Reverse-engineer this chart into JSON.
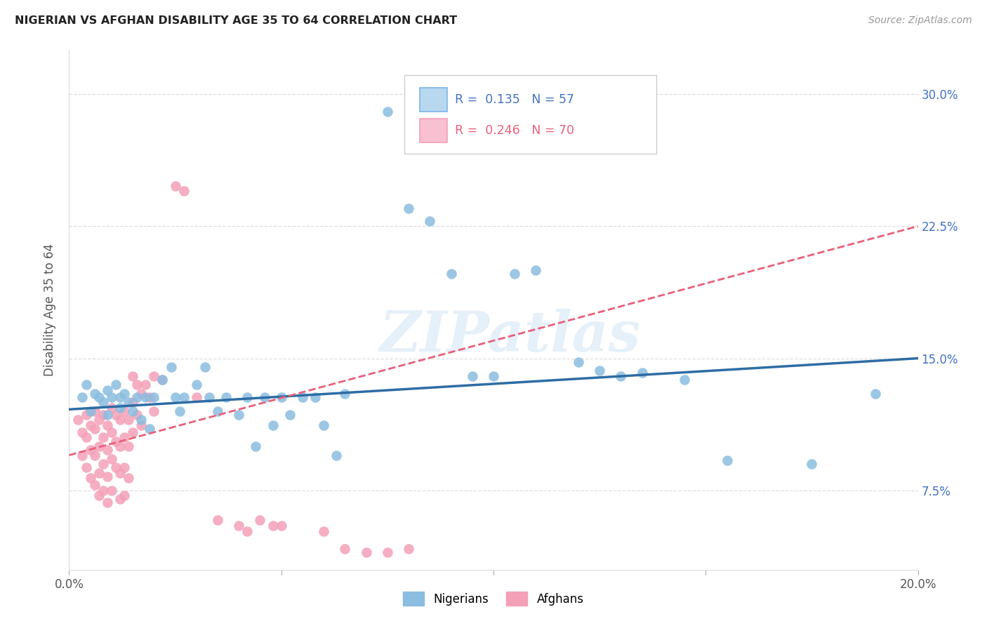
{
  "title": "NIGERIAN VS AFGHAN DISABILITY AGE 35 TO 64 CORRELATION CHART",
  "source": "Source: ZipAtlas.com",
  "ylabel": "Disability Age 35 to 64",
  "xlim": [
    0.0,
    0.2
  ],
  "ylim": [
    0.03,
    0.325
  ],
  "xtick_positions": [
    0.0,
    0.05,
    0.1,
    0.15,
    0.2
  ],
  "xtick_labels": [
    "0.0%",
    "",
    "",
    "",
    "20.0%"
  ],
  "ytick_positions": [
    0.075,
    0.15,
    0.225,
    0.3
  ],
  "ytick_labels": [
    "7.5%",
    "15.0%",
    "22.5%",
    "30.0%"
  ],
  "nigerian_color": "#8BBDE0",
  "afghan_color": "#F4A0B8",
  "nigerian_line_color": "#2E6DA4",
  "afghan_line_color": "#E8607A",
  "watermark": "ZIPatlas",
  "nigerian_points": [
    [
      0.003,
      0.128
    ],
    [
      0.004,
      0.135
    ],
    [
      0.005,
      0.12
    ],
    [
      0.006,
      0.13
    ],
    [
      0.007,
      0.128
    ],
    [
      0.008,
      0.125
    ],
    [
      0.009,
      0.132
    ],
    [
      0.009,
      0.118
    ],
    [
      0.01,
      0.128
    ],
    [
      0.011,
      0.135
    ],
    [
      0.012,
      0.122
    ],
    [
      0.012,
      0.128
    ],
    [
      0.013,
      0.13
    ],
    [
      0.014,
      0.125
    ],
    [
      0.015,
      0.12
    ],
    [
      0.016,
      0.128
    ],
    [
      0.017,
      0.115
    ],
    [
      0.018,
      0.128
    ],
    [
      0.019,
      0.11
    ],
    [
      0.02,
      0.128
    ],
    [
      0.022,
      0.138
    ],
    [
      0.024,
      0.145
    ],
    [
      0.025,
      0.128
    ],
    [
      0.026,
      0.12
    ],
    [
      0.027,
      0.128
    ],
    [
      0.03,
      0.135
    ],
    [
      0.032,
      0.145
    ],
    [
      0.033,
      0.128
    ],
    [
      0.035,
      0.12
    ],
    [
      0.037,
      0.128
    ],
    [
      0.04,
      0.118
    ],
    [
      0.042,
      0.128
    ],
    [
      0.044,
      0.1
    ],
    [
      0.046,
      0.128
    ],
    [
      0.048,
      0.112
    ],
    [
      0.05,
      0.128
    ],
    [
      0.052,
      0.118
    ],
    [
      0.055,
      0.128
    ],
    [
      0.058,
      0.128
    ],
    [
      0.06,
      0.112
    ],
    [
      0.063,
      0.095
    ],
    [
      0.065,
      0.13
    ],
    [
      0.075,
      0.29
    ],
    [
      0.08,
      0.235
    ],
    [
      0.085,
      0.228
    ],
    [
      0.09,
      0.198
    ],
    [
      0.095,
      0.14
    ],
    [
      0.1,
      0.14
    ],
    [
      0.105,
      0.198
    ],
    [
      0.11,
      0.2
    ],
    [
      0.12,
      0.148
    ],
    [
      0.125,
      0.143
    ],
    [
      0.13,
      0.14
    ],
    [
      0.135,
      0.142
    ],
    [
      0.145,
      0.138
    ],
    [
      0.155,
      0.092
    ],
    [
      0.175,
      0.09
    ],
    [
      0.19,
      0.13
    ]
  ],
  "afghan_points": [
    [
      0.002,
      0.115
    ],
    [
      0.003,
      0.108
    ],
    [
      0.003,
      0.095
    ],
    [
      0.004,
      0.118
    ],
    [
      0.004,
      0.105
    ],
    [
      0.004,
      0.088
    ],
    [
      0.005,
      0.112
    ],
    [
      0.005,
      0.098
    ],
    [
      0.005,
      0.082
    ],
    [
      0.006,
      0.12
    ],
    [
      0.006,
      0.11
    ],
    [
      0.006,
      0.095
    ],
    [
      0.006,
      0.078
    ],
    [
      0.007,
      0.115
    ],
    [
      0.007,
      0.1
    ],
    [
      0.007,
      0.085
    ],
    [
      0.007,
      0.072
    ],
    [
      0.008,
      0.118
    ],
    [
      0.008,
      0.105
    ],
    [
      0.008,
      0.09
    ],
    [
      0.008,
      0.075
    ],
    [
      0.009,
      0.112
    ],
    [
      0.009,
      0.098
    ],
    [
      0.009,
      0.083
    ],
    [
      0.009,
      0.068
    ],
    [
      0.01,
      0.122
    ],
    [
      0.01,
      0.108
    ],
    [
      0.01,
      0.093
    ],
    [
      0.01,
      0.075
    ],
    [
      0.011,
      0.118
    ],
    [
      0.011,
      0.103
    ],
    [
      0.011,
      0.088
    ],
    [
      0.012,
      0.115
    ],
    [
      0.012,
      0.1
    ],
    [
      0.012,
      0.085
    ],
    [
      0.012,
      0.07
    ],
    [
      0.013,
      0.12
    ],
    [
      0.013,
      0.105
    ],
    [
      0.013,
      0.088
    ],
    [
      0.013,
      0.072
    ],
    [
      0.014,
      0.115
    ],
    [
      0.014,
      0.1
    ],
    [
      0.014,
      0.082
    ],
    [
      0.015,
      0.14
    ],
    [
      0.015,
      0.125
    ],
    [
      0.015,
      0.108
    ],
    [
      0.016,
      0.135
    ],
    [
      0.016,
      0.118
    ],
    [
      0.017,
      0.13
    ],
    [
      0.017,
      0.112
    ],
    [
      0.018,
      0.135
    ],
    [
      0.019,
      0.128
    ],
    [
      0.02,
      0.14
    ],
    [
      0.02,
      0.12
    ],
    [
      0.022,
      0.138
    ],
    [
      0.025,
      0.248
    ],
    [
      0.027,
      0.245
    ],
    [
      0.03,
      0.128
    ],
    [
      0.035,
      0.058
    ],
    [
      0.04,
      0.055
    ],
    [
      0.042,
      0.052
    ],
    [
      0.045,
      0.058
    ],
    [
      0.048,
      0.055
    ],
    [
      0.05,
      0.055
    ],
    [
      0.06,
      0.052
    ],
    [
      0.065,
      0.042
    ],
    [
      0.07,
      0.04
    ],
    [
      0.075,
      0.04
    ],
    [
      0.08,
      0.042
    ]
  ]
}
